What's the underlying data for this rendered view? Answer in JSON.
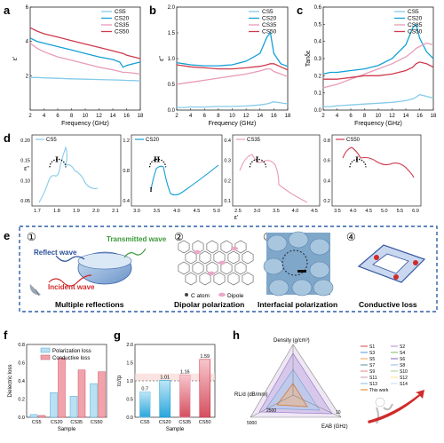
{
  "colors": {
    "CS5": "#86cbea",
    "CS20": "#14a0d6",
    "CS35": "#e89bb9",
    "CS50": "#cf3a4c",
    "black": "#111",
    "frame": "#2f5ea7"
  },
  "panel_letters": [
    "a",
    "b",
    "c",
    "d",
    "e",
    "f",
    "g",
    "h"
  ],
  "top_panels": {
    "xlabel": "Frequency (GHz)",
    "xticks": [
      "2",
      "4",
      "6",
      "8",
      "10",
      "12",
      "14",
      "16",
      "18"
    ],
    "legend": [
      "CS5",
      "CS20",
      "CS35",
      "CS50"
    ],
    "a": {
      "ylabel": "ε'",
      "yticks": [
        "2",
        "4",
        "6"
      ]
    },
    "b": {
      "ylabel": "ε''",
      "yticks": [
        "0.0",
        "0.5",
        "1.0",
        "1.5",
        "2.0"
      ]
    },
    "c": {
      "ylabel": "Tanδε",
      "yticks": [
        "0.0",
        "0.1",
        "0.2",
        "0.3",
        "0.4",
        "0.5",
        "0.6"
      ]
    }
  },
  "panel_d": {
    "ylabel": "ε''",
    "xlabel": "ε'",
    "subplots": [
      {
        "name": "CS5",
        "marker": "I",
        "yticks": [
          "0.05",
          "0.10",
          "0.15",
          "0.20"
        ],
        "xticks": [
          "1.7",
          "1.8",
          "1.9",
          "2.0",
          "2.1"
        ]
      },
      {
        "name": "CS20",
        "marker": "II",
        "marker2": "I",
        "yticks": [
          "0.4",
          "0.8",
          "1.2"
        ],
        "xticks": [
          "3.0",
          "3.5",
          "4.0",
          "4.5",
          "5.0"
        ]
      },
      {
        "name": "CS35",
        "marker": "I",
        "yticks": [
          "0.1",
          "0.2",
          "0.3",
          "0.4"
        ],
        "xticks": [
          "2.5",
          "3.0",
          "3.5",
          "4.0",
          "4.5"
        ]
      },
      {
        "name": "CS50",
        "marker": "I",
        "yticks": [
          "0.2",
          "0.4",
          "0.6",
          "0.8"
        ],
        "xticks": [
          "3.5",
          "4.0",
          "4.5",
          "5.0",
          "5.5",
          "6.0"
        ]
      }
    ]
  },
  "panel_e": {
    "steps": [
      {
        "num": "①",
        "caption": "Multiple reflections",
        "labels": [
          "Reflect wave",
          "Transmitted wave",
          "Incident wave"
        ]
      },
      {
        "num": "②",
        "caption": "Dipolar polarization",
        "legend": [
          "C atom",
          "Dipole"
        ]
      },
      {
        "num": "③",
        "caption": "Interfacial polarization"
      },
      {
        "num": "④",
        "caption": "Conductive loss"
      }
    ]
  },
  "panel_f": {
    "ylabel": "Dielectric loss",
    "xlabel": "Sample",
    "legend": [
      "Polarization loss",
      "Conductive loss"
    ],
    "yticks": [
      "0.0",
      "0.2",
      "0.4",
      "0.6",
      "0.8"
    ]
  },
  "panel_g": {
    "ylabel": "τc/τp",
    "xlabel": "Sample",
    "yticks": [
      "0.0",
      "0.5",
      "1.0",
      "1.5",
      "2.0"
    ]
  },
  "panel_h": {
    "axes": [
      "Density (g/cm³)",
      "RL/d (dB/mm)",
      "EAB (GHz)"
    ],
    "ticks": [
      "2500",
      "5000",
      "10"
    ],
    "legend": [
      "S1",
      "S2",
      "S3",
      "S4",
      "S5",
      "S6",
      "S7",
      "S8",
      "S9",
      "S10",
      "S11",
      "S12",
      "S13",
      "S14",
      "This work"
    ],
    "badge": "Better"
  },
  "chart_data": [
    {
      "panel": "a",
      "type": "line",
      "xlabel": "Frequency (GHz)",
      "ylabel": "ε'",
      "xlim": [
        2,
        18
      ],
      "ylim": [
        0,
        6
      ],
      "x": [
        2,
        3,
        4,
        6,
        8,
        10,
        12,
        14,
        15,
        15.5,
        16,
        17,
        18
      ],
      "series": [
        {
          "name": "CS5",
          "values": [
            1.9,
            1.9,
            1.88,
            1.85,
            1.82,
            1.8,
            1.78,
            1.76,
            1.75,
            1.74,
            1.73,
            1.72,
            1.7
          ]
        },
        {
          "name": "CS20",
          "values": [
            4.2,
            4.0,
            3.9,
            3.7,
            3.5,
            3.3,
            3.1,
            2.95,
            2.8,
            2.5,
            2.6,
            2.7,
            2.8
          ]
        },
        {
          "name": "CS35",
          "values": [
            3.9,
            3.6,
            3.4,
            3.1,
            2.9,
            2.7,
            2.5,
            2.35,
            2.25,
            2.2,
            2.2,
            2.15,
            2.1
          ]
        },
        {
          "name": "CS50",
          "values": [
            4.8,
            4.6,
            4.45,
            4.25,
            4.05,
            3.85,
            3.65,
            3.45,
            3.35,
            3.3,
            3.2,
            3.1,
            3.0
          ]
        }
      ]
    },
    {
      "panel": "b",
      "type": "line",
      "xlabel": "Frequency (GHz)",
      "ylabel": "ε''",
      "xlim": [
        2,
        18
      ],
      "ylim": [
        0,
        2
      ],
      "x": [
        2,
        3,
        4,
        6,
        8,
        10,
        12,
        14,
        15,
        15.5,
        16,
        17,
        18
      ],
      "series": [
        {
          "name": "CS5",
          "values": [
            0.05,
            0.05,
            0.06,
            0.06,
            0.07,
            0.07,
            0.08,
            0.1,
            0.12,
            0.14,
            0.16,
            0.14,
            0.12
          ]
        },
        {
          "name": "CS20",
          "values": [
            0.92,
            0.9,
            0.88,
            0.86,
            0.86,
            0.88,
            0.95,
            1.1,
            1.42,
            1.5,
            1.1,
            0.9,
            0.85
          ]
        },
        {
          "name": "CS35",
          "values": [
            0.5,
            0.52,
            0.54,
            0.58,
            0.62,
            0.66,
            0.7,
            0.76,
            0.8,
            0.8,
            0.75,
            0.7,
            0.65
          ]
        },
        {
          "name": "CS50",
          "values": [
            0.88,
            0.86,
            0.84,
            0.82,
            0.8,
            0.8,
            0.82,
            0.85,
            0.88,
            0.9,
            0.9,
            0.84,
            0.78
          ]
        }
      ]
    },
    {
      "panel": "c",
      "type": "line",
      "xlabel": "Frequency (GHz)",
      "ylabel": "Tanδε",
      "xlim": [
        2,
        18
      ],
      "ylim": [
        0,
        0.6
      ],
      "x": [
        2,
        3,
        4,
        6,
        8,
        10,
        12,
        14,
        15,
        15.5,
        16,
        17,
        18
      ],
      "series": [
        {
          "name": "CS5",
          "values": [
            0.02,
            0.02,
            0.025,
            0.03,
            0.035,
            0.04,
            0.045,
            0.055,
            0.065,
            0.075,
            0.09,
            0.08,
            0.07
          ]
        },
        {
          "name": "CS20",
          "values": [
            0.21,
            0.22,
            0.22,
            0.23,
            0.24,
            0.26,
            0.3,
            0.38,
            0.48,
            0.5,
            0.42,
            0.34,
            0.3
          ]
        },
        {
          "name": "CS35",
          "values": [
            0.13,
            0.14,
            0.15,
            0.18,
            0.21,
            0.24,
            0.27,
            0.31,
            0.34,
            0.36,
            0.37,
            0.39,
            0.38
          ]
        },
        {
          "name": "CS50",
          "values": [
            0.18,
            0.18,
            0.18,
            0.19,
            0.2,
            0.2,
            0.21,
            0.23,
            0.25,
            0.27,
            0.28,
            0.27,
            0.25
          ]
        }
      ]
    },
    {
      "panel": "f",
      "type": "bar",
      "xlabel": "Sample",
      "ylabel": "Dielectric loss",
      "ylim": [
        0,
        0.8
      ],
      "categories": [
        "CS5",
        "CS20",
        "CS35",
        "CS50"
      ],
      "series": [
        {
          "name": "Polarization loss",
          "values": [
            0.03,
            0.27,
            0.23,
            0.37
          ]
        },
        {
          "name": "Conductive loss",
          "values": [
            0.02,
            0.65,
            0.52,
            0.5
          ]
        }
      ]
    },
    {
      "panel": "g",
      "type": "bar",
      "xlabel": "Sample",
      "ylabel": "τc/τp",
      "ylim": [
        0,
        2.0
      ],
      "categories": [
        "CS5",
        "CS20",
        "CS35",
        "CS50"
      ],
      "values": [
        0.7,
        1.01,
        1.16,
        1.59
      ],
      "data_labels": [
        "0.7",
        "1.01",
        "1.16",
        "1.59"
      ]
    }
  ]
}
